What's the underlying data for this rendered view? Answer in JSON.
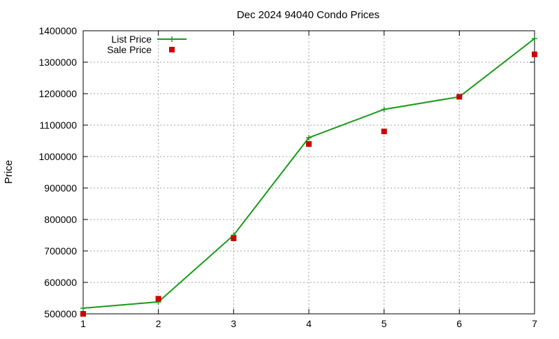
{
  "chart_data": {
    "type": "line",
    "title": "Dec 2024 94040 Condo Prices",
    "xlabel": "",
    "ylabel": "Price",
    "x": [
      1,
      2,
      3,
      4,
      5,
      6,
      7
    ],
    "xlim": [
      1,
      7
    ],
    "ylim": [
      500000,
      1400000
    ],
    "x_ticks": [
      1,
      2,
      3,
      4,
      5,
      6,
      7
    ],
    "y_ticks": [
      500000,
      600000,
      700000,
      800000,
      900000,
      1000000,
      1100000,
      1200000,
      1300000,
      1400000
    ],
    "grid": true,
    "legend_position": "top-left",
    "series": [
      {
        "name": "List Price",
        "style": "linespoints",
        "marker": "plus",
        "color": "#1a9a1a",
        "values": [
          518000,
          538000,
          750000,
          1060000,
          1150000,
          1190000,
          1375000
        ]
      },
      {
        "name": "Sale Price",
        "style": "points",
        "marker": "square",
        "color": "#cc0000",
        "values": [
          500000,
          548000,
          740000,
          1040000,
          1080000,
          1190000,
          1325000
        ]
      }
    ]
  }
}
